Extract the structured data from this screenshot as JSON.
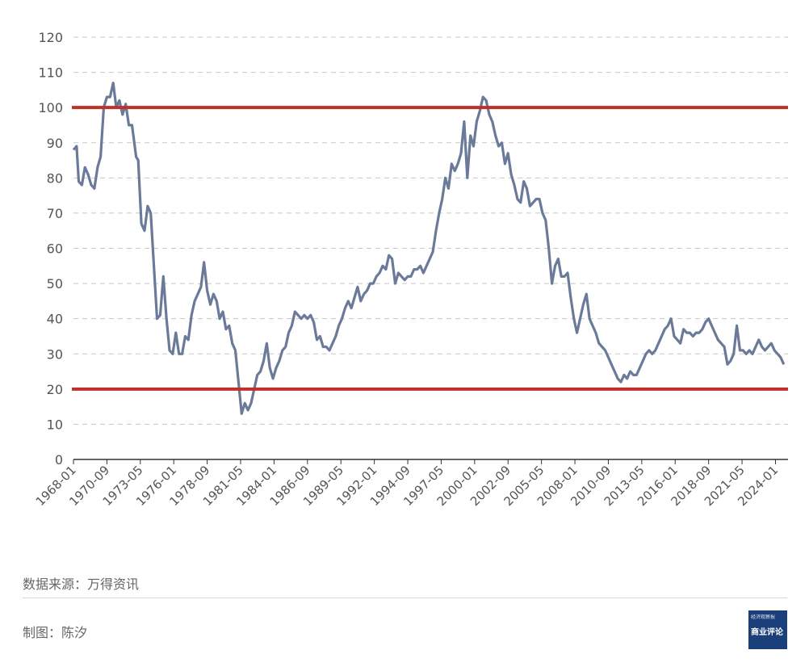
{
  "chart_data": {
    "type": "line",
    "title": "",
    "xlabel": "",
    "ylabel": "",
    "ylim": [
      0,
      120
    ],
    "yticks": [
      0,
      10,
      20,
      30,
      40,
      50,
      60,
      70,
      80,
      90,
      100,
      110,
      120
    ],
    "xticks": [
      "1968-01",
      "1970-09",
      "1973-05",
      "1976-01",
      "1978-09",
      "1981-05",
      "1984-01",
      "1986-09",
      "1989-05",
      "1992-01",
      "1994-09",
      "1997-05",
      "2000-01",
      "2002-09",
      "2005-05",
      "2008-01",
      "2010-09",
      "2013-05",
      "2016-01",
      "2018-09",
      "2021-05",
      "2024-01"
    ],
    "xlim": [
      "1968-01",
      "2025-01"
    ],
    "grid": "horizontal dashed",
    "reference_lines": [
      {
        "y": 100,
        "color": "#c0302a"
      },
      {
        "y": 20,
        "color": "#c0302a"
      }
    ],
    "series": [
      {
        "color": "#6b7a99",
        "points": [
          [
            "1968-01",
            88
          ],
          [
            "1968-04",
            89
          ],
          [
            "1968-06",
            79
          ],
          [
            "1968-09",
            78
          ],
          [
            "1968-12",
            83
          ],
          [
            "1969-03",
            81
          ],
          [
            "1969-06",
            78
          ],
          [
            "1969-09",
            77
          ],
          [
            "1969-12",
            83
          ],
          [
            "1970-03",
            86
          ],
          [
            "1970-06",
            100
          ],
          [
            "1970-09",
            103
          ],
          [
            "1970-12",
            103
          ],
          [
            "1971-03",
            107
          ],
          [
            "1971-06",
            100
          ],
          [
            "1971-09",
            102
          ],
          [
            "1971-12",
            98
          ],
          [
            "1972-03",
            101
          ],
          [
            "1972-06",
            95
          ],
          [
            "1972-09",
            95
          ],
          [
            "1973-01",
            86
          ],
          [
            "1973-03",
            85
          ],
          [
            "1973-06",
            67
          ],
          [
            "1973-09",
            65
          ],
          [
            "1973-12",
            72
          ],
          [
            "1974-03",
            70
          ],
          [
            "1974-06",
            55
          ],
          [
            "1974-09",
            40
          ],
          [
            "1974-12",
            41
          ],
          [
            "1975-03",
            52
          ],
          [
            "1975-06",
            40
          ],
          [
            "1975-09",
            31
          ],
          [
            "1975-12",
            30
          ],
          [
            "1976-03",
            36
          ],
          [
            "1976-06",
            30
          ],
          [
            "1976-09",
            30
          ],
          [
            "1976-12",
            35
          ],
          [
            "1977-03",
            34
          ],
          [
            "1977-06",
            41
          ],
          [
            "1977-09",
            45
          ],
          [
            "1977-12",
            47
          ],
          [
            "1978-03",
            49
          ],
          [
            "1978-06",
            56
          ],
          [
            "1978-09",
            48
          ],
          [
            "1978-12",
            44
          ],
          [
            "1979-03",
            47
          ],
          [
            "1979-06",
            45
          ],
          [
            "1979-09",
            40
          ],
          [
            "1979-12",
            42
          ],
          [
            "1980-03",
            37
          ],
          [
            "1980-06",
            38
          ],
          [
            "1980-09",
            33
          ],
          [
            "1980-12",
            31
          ],
          [
            "1981-03",
            22
          ],
          [
            "1981-06",
            13
          ],
          [
            "1981-09",
            16
          ],
          [
            "1981-12",
            14
          ],
          [
            "1982-03",
            16
          ],
          [
            "1982-06",
            20
          ],
          [
            "1982-09",
            24
          ],
          [
            "1982-12",
            25
          ],
          [
            "1983-03",
            28
          ],
          [
            "1983-06",
            33
          ],
          [
            "1983-09",
            26
          ],
          [
            "1983-12",
            23
          ],
          [
            "1984-03",
            26
          ],
          [
            "1984-06",
            28
          ],
          [
            "1984-09",
            31
          ],
          [
            "1984-12",
            32
          ],
          [
            "1985-03",
            36
          ],
          [
            "1985-06",
            38
          ],
          [
            "1985-09",
            42
          ],
          [
            "1985-12",
            41
          ],
          [
            "1986-03",
            40
          ],
          [
            "1986-06",
            41
          ],
          [
            "1986-09",
            40
          ],
          [
            "1986-12",
            41
          ],
          [
            "1987-03",
            39
          ],
          [
            "1987-06",
            34
          ],
          [
            "1987-09",
            35
          ],
          [
            "1987-12",
            32
          ],
          [
            "1988-03",
            32
          ],
          [
            "1988-06",
            31
          ],
          [
            "1988-09",
            33
          ],
          [
            "1988-12",
            35
          ],
          [
            "1989-03",
            38
          ],
          [
            "1989-06",
            40
          ],
          [
            "1989-09",
            43
          ],
          [
            "1989-12",
            45
          ],
          [
            "1990-03",
            43
          ],
          [
            "1990-06",
            46
          ],
          [
            "1990-09",
            49
          ],
          [
            "1990-12",
            45
          ],
          [
            "1991-03",
            47
          ],
          [
            "1991-06",
            48
          ],
          [
            "1991-09",
            50
          ],
          [
            "1991-12",
            50
          ],
          [
            "1992-03",
            52
          ],
          [
            "1992-06",
            53
          ],
          [
            "1992-09",
            55
          ],
          [
            "1992-12",
            54
          ],
          [
            "1993-03",
            58
          ],
          [
            "1993-06",
            57
          ],
          [
            "1993-09",
            50
          ],
          [
            "1993-12",
            53
          ],
          [
            "1994-03",
            52
          ],
          [
            "1994-06",
            51
          ],
          [
            "1994-09",
            52
          ],
          [
            "1994-12",
            52
          ],
          [
            "1995-03",
            54
          ],
          [
            "1995-06",
            54
          ],
          [
            "1995-09",
            55
          ],
          [
            "1995-12",
            53
          ],
          [
            "1996-03",
            55
          ],
          [
            "1996-06",
            57
          ],
          [
            "1996-09",
            59
          ],
          [
            "1996-12",
            65
          ],
          [
            "1997-03",
            70
          ],
          [
            "1997-06",
            74
          ],
          [
            "1997-09",
            80
          ],
          [
            "1997-12",
            77
          ],
          [
            "1998-03",
            84
          ],
          [
            "1998-06",
            82
          ],
          [
            "1998-09",
            84
          ],
          [
            "1998-12",
            87
          ],
          [
            "1999-03",
            96
          ],
          [
            "1999-06",
            80
          ],
          [
            "1999-09",
            92
          ],
          [
            "1999-12",
            89
          ],
          [
            "2000-03",
            96
          ],
          [
            "2000-06",
            99
          ],
          [
            "2000-09",
            103
          ],
          [
            "2000-12",
            102
          ],
          [
            "2001-03",
            98
          ],
          [
            "2001-06",
            96
          ],
          [
            "2001-09",
            92
          ],
          [
            "2001-12",
            89
          ],
          [
            "2002-03",
            90
          ],
          [
            "2002-06",
            84
          ],
          [
            "2002-09",
            87
          ],
          [
            "2002-12",
            81
          ],
          [
            "2003-03",
            78
          ],
          [
            "2003-06",
            74
          ],
          [
            "2003-09",
            73
          ],
          [
            "2003-12",
            79
          ],
          [
            "2004-03",
            77
          ],
          [
            "2004-06",
            72
          ],
          [
            "2004-09",
            73
          ],
          [
            "2004-12",
            74
          ],
          [
            "2005-03",
            74
          ],
          [
            "2005-06",
            70
          ],
          [
            "2005-09",
            68
          ],
          [
            "2005-12",
            60
          ],
          [
            "2006-03",
            50
          ],
          [
            "2006-06",
            55
          ],
          [
            "2006-09",
            57
          ],
          [
            "2006-12",
            52
          ],
          [
            "2007-03",
            52
          ],
          [
            "2007-06",
            53
          ],
          [
            "2007-09",
            46
          ],
          [
            "2007-12",
            40
          ],
          [
            "2008-03",
            36
          ],
          [
            "2008-06",
            40
          ],
          [
            "2008-09",
            44
          ],
          [
            "2008-12",
            47
          ],
          [
            "2009-03",
            40
          ],
          [
            "2009-06",
            38
          ],
          [
            "2009-09",
            36
          ],
          [
            "2009-12",
            33
          ],
          [
            "2010-03",
            32
          ],
          [
            "2010-06",
            31
          ],
          [
            "2010-09",
            29
          ],
          [
            "2010-12",
            27
          ],
          [
            "2011-03",
            25
          ],
          [
            "2011-06",
            23
          ],
          [
            "2011-09",
            22
          ],
          [
            "2011-12",
            24
          ],
          [
            "2012-03",
            23
          ],
          [
            "2012-06",
            25
          ],
          [
            "2012-09",
            24
          ],
          [
            "2012-12",
            24
          ],
          [
            "2013-03",
            26
          ],
          [
            "2013-06",
            28
          ],
          [
            "2013-09",
            30
          ],
          [
            "2013-12",
            31
          ],
          [
            "2014-03",
            30
          ],
          [
            "2014-06",
            31
          ],
          [
            "2014-09",
            33
          ],
          [
            "2014-12",
            35
          ],
          [
            "2015-03",
            37
          ],
          [
            "2015-06",
            38
          ],
          [
            "2015-09",
            40
          ],
          [
            "2015-12",
            35
          ],
          [
            "2016-03",
            34
          ],
          [
            "2016-06",
            33
          ],
          [
            "2016-09",
            37
          ],
          [
            "2016-12",
            36
          ],
          [
            "2017-03",
            36
          ],
          [
            "2017-06",
            35
          ],
          [
            "2017-09",
            36
          ],
          [
            "2017-12",
            36
          ],
          [
            "2018-03",
            37
          ],
          [
            "2018-06",
            39
          ],
          [
            "2018-09",
            40
          ],
          [
            "2018-12",
            38
          ],
          [
            "2019-03",
            36
          ],
          [
            "2019-06",
            34
          ],
          [
            "2019-09",
            33
          ],
          [
            "2019-12",
            32
          ],
          [
            "2020-03",
            27
          ],
          [
            "2020-06",
            28
          ],
          [
            "2020-09",
            30
          ],
          [
            "2020-12",
            38
          ],
          [
            "2021-03",
            31
          ],
          [
            "2021-06",
            31
          ],
          [
            "2021-09",
            30
          ],
          [
            "2021-12",
            31
          ],
          [
            "2022-03",
            30
          ],
          [
            "2022-06",
            32
          ],
          [
            "2022-09",
            34
          ],
          [
            "2022-12",
            32
          ],
          [
            "2023-03",
            31
          ],
          [
            "2023-06",
            32
          ],
          [
            "2023-09",
            33
          ],
          [
            "2023-12",
            31
          ],
          [
            "2024-03",
            30
          ],
          [
            "2024-06",
            29
          ],
          [
            "2024-09",
            27
          ]
        ]
      }
    ]
  },
  "footer": {
    "source": "数据来源：万得资讯",
    "credit": "制图：陈汐"
  },
  "logo": {
    "line1": "经济观察报",
    "line2": "商业评论"
  }
}
